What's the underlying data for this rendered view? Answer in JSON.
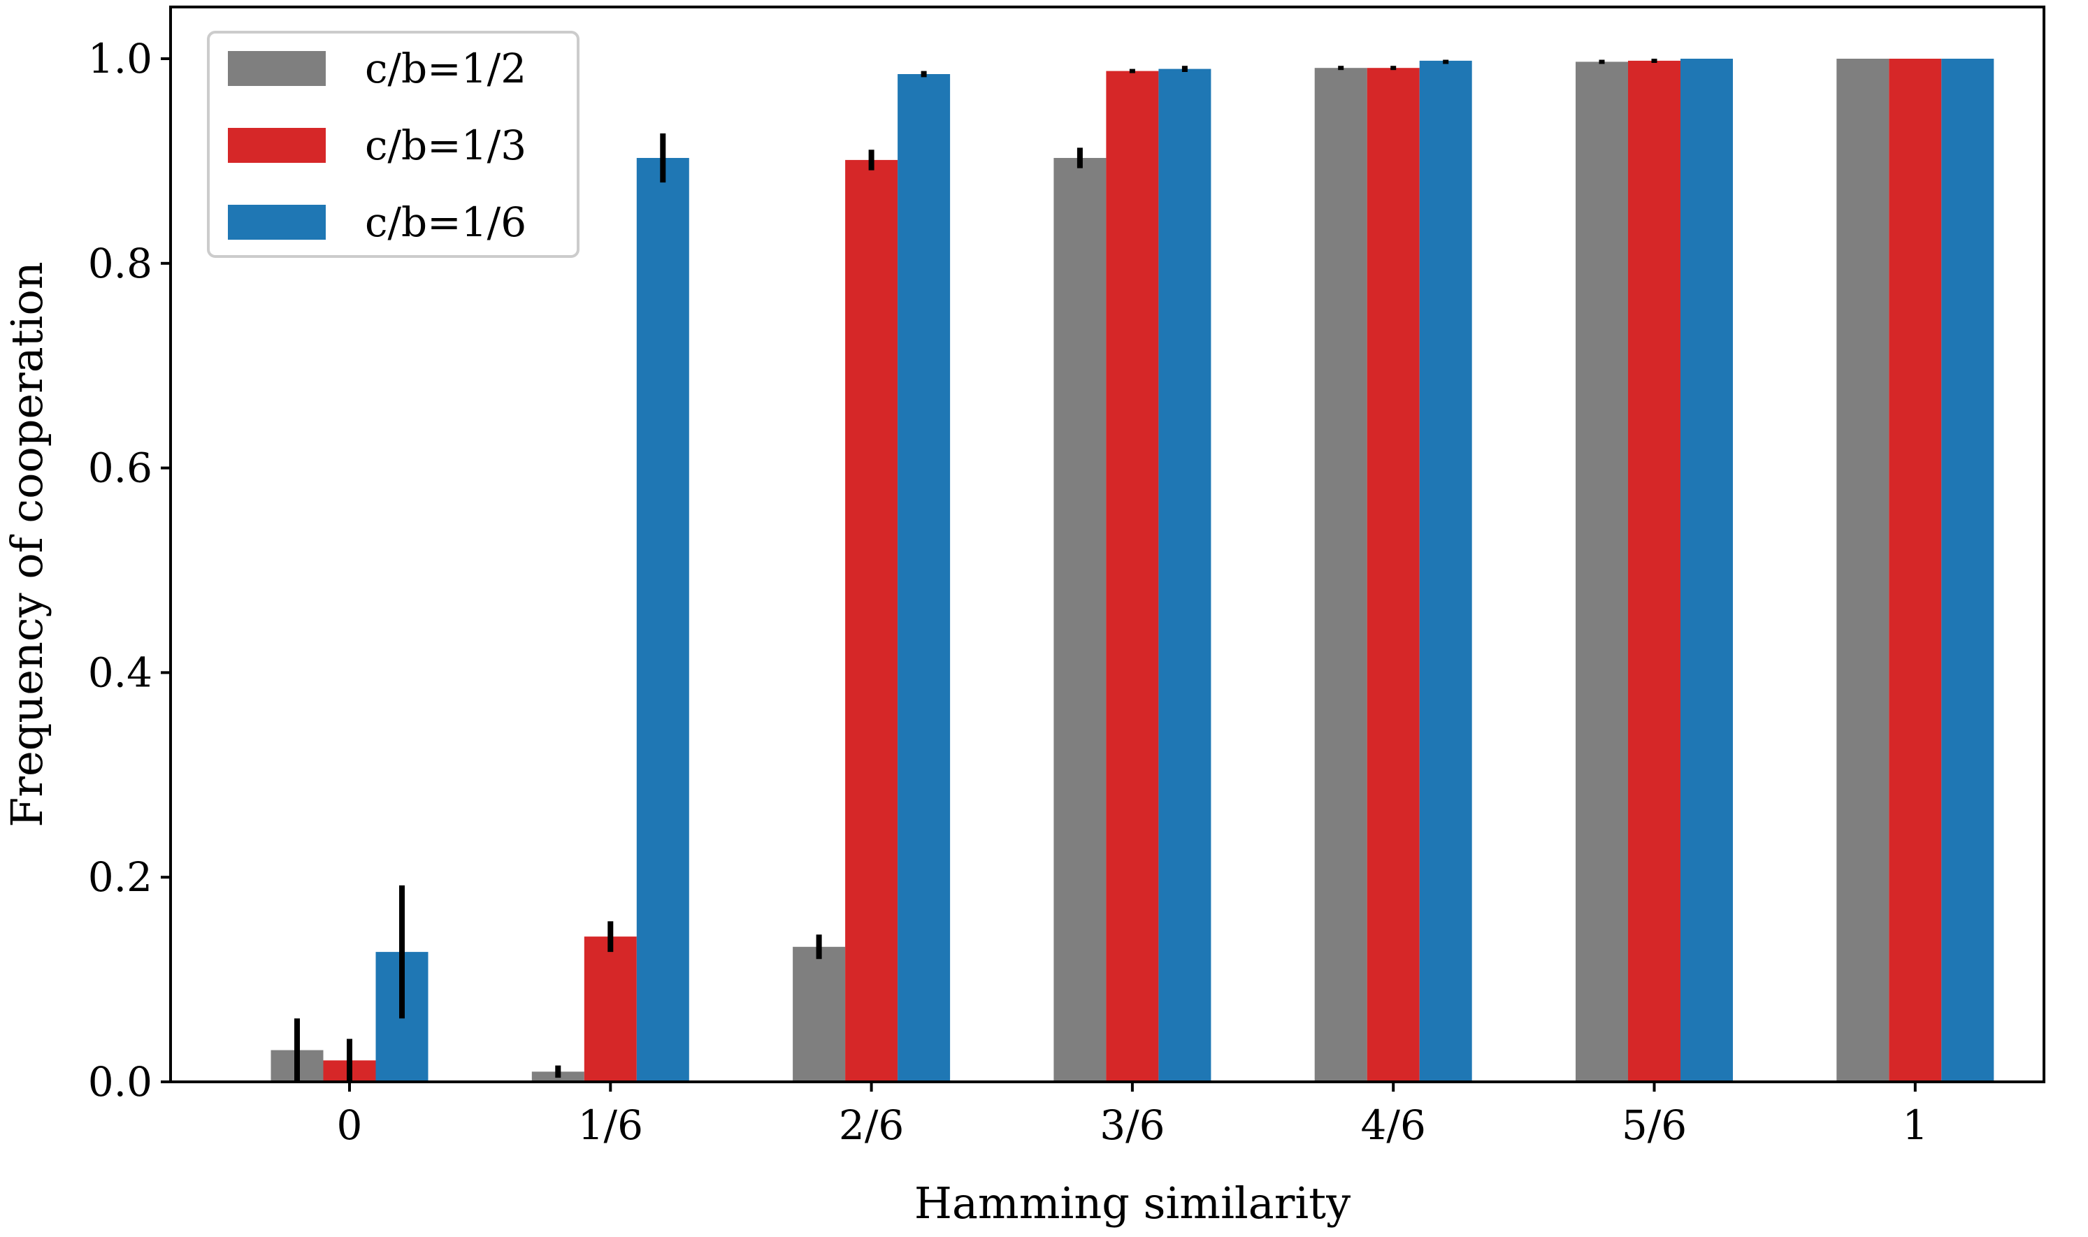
{
  "chart_data": {
    "type": "bar",
    "title": "",
    "xlabel": "Hamming similarity",
    "ylabel": "Frequency of cooperation",
    "categories": [
      "0",
      "1/6",
      "2/6",
      "3/6",
      "4/6",
      "5/6",
      "1"
    ],
    "ylim": [
      0.0,
      1.05
    ],
    "yticks": [
      0.0,
      0.2,
      0.4,
      0.6,
      0.8,
      1.0
    ],
    "ytick_labels": [
      "0.0",
      "0.2",
      "0.4",
      "0.6",
      "0.8",
      "1.0"
    ],
    "grid": false,
    "legend_position": "top-left",
    "series": [
      {
        "name": "c/b=1/2",
        "color": "#7f7f7f",
        "values": [
          0.031,
          0.01,
          0.132,
          0.903,
          0.991,
          0.997,
          1.0
        ],
        "errors": [
          0.031,
          0.006,
          0.012,
          0.01,
          0.002,
          0.002,
          0.0
        ]
      },
      {
        "name": "c/b=1/3",
        "color": "#d62728",
        "values": [
          0.021,
          0.142,
          0.901,
          0.988,
          0.991,
          0.998,
          1.0
        ],
        "errors": [
          0.021,
          0.015,
          0.01,
          0.002,
          0.002,
          0.002,
          0.0
        ]
      },
      {
        "name": "c/b=1/6",
        "color": "#1f77b4",
        "values": [
          0.127,
          0.903,
          0.985,
          0.99,
          0.998,
          1.0,
          1.0
        ],
        "errors": [
          0.065,
          0.024,
          0.003,
          0.003,
          0.001,
          0.0,
          0.0
        ]
      }
    ]
  }
}
